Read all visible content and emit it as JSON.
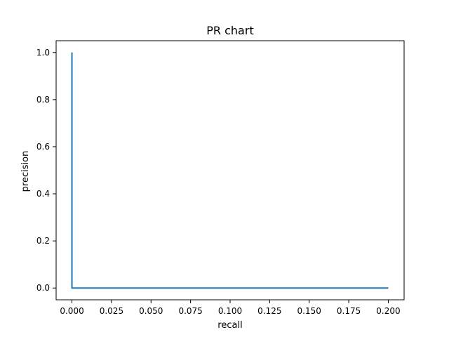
{
  "chart_data": {
    "type": "line",
    "title": "PR chart",
    "xlabel": "recall",
    "ylabel": "precision",
    "xlim": [
      -0.01,
      0.21
    ],
    "ylim": [
      -0.05,
      1.05
    ],
    "xticks": [
      0.0,
      0.025,
      0.05,
      0.075,
      0.1,
      0.125,
      0.15,
      0.175,
      0.2
    ],
    "xtick_labels": [
      "0.000",
      "0.025",
      "0.050",
      "0.075",
      "0.100",
      "0.125",
      "0.150",
      "0.175",
      "0.200"
    ],
    "yticks": [
      0.0,
      0.2,
      0.4,
      0.6,
      0.8,
      1.0
    ],
    "ytick_labels": [
      "0.0",
      "0.2",
      "0.4",
      "0.6",
      "0.8",
      "1.0"
    ],
    "grid": false,
    "series": [
      {
        "x": [
          0.0,
          0.0,
          0.2
        ],
        "y": [
          1.0,
          0.0,
          0.0
        ],
        "color": "#1f77b4"
      }
    ]
  }
}
